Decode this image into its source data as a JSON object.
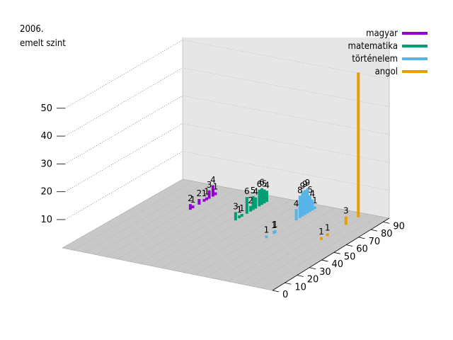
{
  "title_lines": [
    "2006.",
    "emelt szint"
  ],
  "colors": {
    "magyar": "#9400d3",
    "matematika": "#009e73",
    "tortenelem": "#56b4e9",
    "angol": "#e69f00",
    "wall": "#e6e6e6",
    "floor": "#c8c8c8"
  },
  "chart_data": {
    "type": "bar",
    "xlabel": "",
    "ylabel": "",
    "z_ticks": [
      10,
      20,
      30,
      40,
      50
    ],
    "y_ticks": [
      0,
      10,
      20,
      30,
      40,
      50,
      60,
      70,
      80,
      90
    ],
    "zlim": [
      0,
      55
    ],
    "ylim": [
      0,
      95
    ],
    "series": [
      {
        "name": "magyar",
        "color": "#9400d3",
        "points": [
          {
            "y": 85,
            "value": 1
          },
          {
            "y": 83,
            "value": 4
          },
          {
            "y": 80,
            "value": 3
          },
          {
            "y": 78,
            "value": 1
          },
          {
            "y": 76,
            "value": 1
          },
          {
            "y": 72,
            "value": 2
          },
          {
            "y": 67,
            "value": 1
          },
          {
            "y": 65,
            "value": 2
          }
        ]
      },
      {
        "name": "matematika",
        "color": "#009e73",
        "points": [
          {
            "y": 88,
            "value": 4
          },
          {
            "y": 86,
            "value": 5
          },
          {
            "y": 84,
            "value": 6
          },
          {
            "y": 82,
            "value": 6
          },
          {
            "y": 79,
            "value": 4
          },
          {
            "y": 77,
            "value": 5
          },
          {
            "y": 75,
            "value": 2
          },
          {
            "y": 72,
            "value": 6
          },
          {
            "y": 68,
            "value": 1
          },
          {
            "y": 66,
            "value": 1
          },
          {
            "y": 63,
            "value": 3
          }
        ]
      },
      {
        "name": "történelem",
        "color": "#56b4e9",
        "points": [
          {
            "y": 90,
            "value": 1
          },
          {
            "y": 88,
            "value": 4
          },
          {
            "y": 86,
            "value": 6
          },
          {
            "y": 84,
            "value": 9
          },
          {
            "y": 82,
            "value": 9
          },
          {
            "y": 80,
            "value": 9
          },
          {
            "y": 78,
            "value": 8
          },
          {
            "y": 75,
            "value": 4
          },
          {
            "y": 58,
            "value": 1
          },
          {
            "y": 57,
            "value": 1
          },
          {
            "y": 51,
            "value": 1
          }
        ]
      },
      {
        "name": "angol",
        "color": "#e69f00",
        "points": [
          {
            "y": 90,
            "value": 52
          },
          {
            "y": 80,
            "value": 3
          },
          {
            "y": 65,
            "value": 1
          },
          {
            "y": 60,
            "value": 1
          }
        ]
      }
    ]
  }
}
